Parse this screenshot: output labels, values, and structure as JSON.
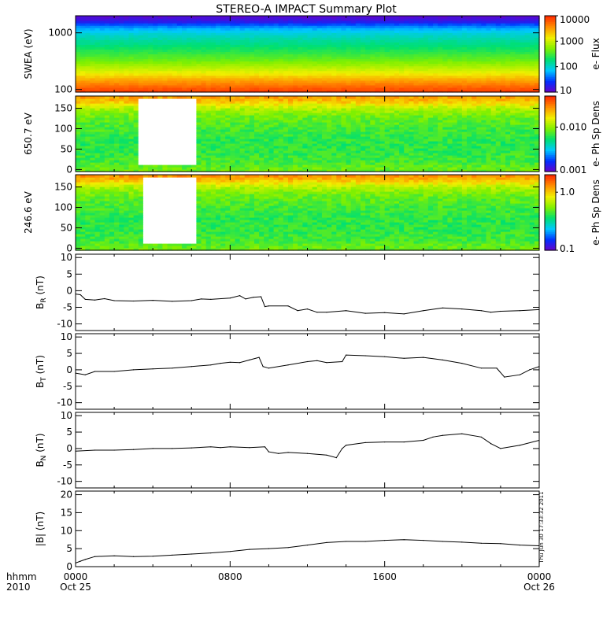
{
  "title": "STEREO-A IMPACT Summary Plot",
  "time_axis": {
    "label_line1": "hhmm",
    "label_line2": "2010",
    "ticks": [
      {
        "hhmm": "0000",
        "date": "Oct 25",
        "hours": 0
      },
      {
        "hhmm": "0800",
        "date": "",
        "hours": 8
      },
      {
        "hhmm": "1600",
        "date": "",
        "hours": 16
      },
      {
        "hhmm": "0000",
        "date": "Oct 26",
        "hours": 24
      }
    ],
    "range_hours": [
      0,
      24
    ]
  },
  "timestamp": "Thu Jun 30 17:33:32 2011",
  "colors": {
    "trace": "#000000",
    "gap": "#ffffff",
    "frame": "#000000"
  },
  "chart_data": [
    {
      "type": "heatmap",
      "ylabel": "SWEA (eV)",
      "yscale": "log",
      "ylim": [
        90,
        2000
      ],
      "yticks": [
        {
          "value": 100,
          "label": "100"
        },
        {
          "value": 1000,
          "label": "1000"
        }
      ],
      "colorbar": {
        "label": "e- Flux",
        "scale": "log",
        "range": [
          10,
          10000
        ],
        "ticks": [
          {
            "value": 10000,
            "label": "10000"
          },
          {
            "value": 1000,
            "label": "1000"
          },
          {
            "value": 100,
            "label": "100"
          },
          {
            "value": 10,
            "label": "10"
          }
        ],
        "colormap": [
          "#6a00c8",
          "#0030ff",
          "#00c8ff",
          "#00e070",
          "#80f000",
          "#f0f000",
          "#ff9000",
          "#ff2800"
        ]
      },
      "energy_profile": [
        {
          "energy": 90,
          "level": 0.98
        },
        {
          "energy": 110,
          "level": 0.92
        },
        {
          "energy": 150,
          "level": 0.82
        },
        {
          "energy": 190,
          "level": 0.72
        },
        {
          "energy": 230,
          "level": 0.66
        },
        {
          "energy": 260,
          "level": 0.62
        },
        {
          "energy": 330,
          "level": 0.55
        },
        {
          "energy": 450,
          "level": 0.48
        },
        {
          "energy": 600,
          "level": 0.42
        },
        {
          "energy": 800,
          "level": 0.37
        },
        {
          "energy": 1000,
          "level": 0.32
        },
        {
          "energy": 1200,
          "level": 0.26
        },
        {
          "energy": 1400,
          "level": 0.18
        },
        {
          "energy": 1600,
          "level": 0.08
        },
        {
          "energy": 2000,
          "level": 0.02
        }
      ]
    },
    {
      "type": "heatmap",
      "ylabel": "650.7 eV",
      "ylim": [
        -5,
        180
      ],
      "yticks": [
        {
          "value": 0,
          "label": "0"
        },
        {
          "value": 50,
          "label": "50"
        },
        {
          "value": 100,
          "label": "100"
        },
        {
          "value": 150,
          "label": "150"
        }
      ],
      "colorbar": {
        "label": "e- Ph Sp Dens",
        "scale": "log",
        "range": [
          0.001,
          0.05
        ],
        "ticks": [
          {
            "value": 0.01,
            "label": "0.010"
          },
          {
            "value": 0.001,
            "label": "0.001"
          }
        ],
        "colormap": [
          "#6a00c8",
          "#0030ff",
          "#00c8ff",
          "#00e070",
          "#80f000",
          "#f0f000",
          "#ff9000",
          "#ff2800"
        ]
      },
      "pitch_profile": [
        {
          "pitch": 180,
          "level": 0.84
        },
        {
          "pitch": 170,
          "level": 0.8
        },
        {
          "pitch": 160,
          "level": 0.72
        },
        {
          "pitch": 150,
          "level": 0.63
        },
        {
          "pitch": 130,
          "level": 0.55
        },
        {
          "pitch": 100,
          "level": 0.5
        },
        {
          "pitch": 60,
          "level": 0.47
        },
        {
          "pitch": 20,
          "level": 0.5
        },
        {
          "pitch": 0,
          "level": 0.55
        }
      ],
      "data_gaps": [
        {
          "start_hours": 3.3,
          "end_hours": 6.2,
          "pitch_min": 15,
          "pitch_max": 175
        }
      ]
    },
    {
      "type": "heatmap",
      "ylabel": "246.6 eV",
      "ylim": [
        -5,
        180
      ],
      "yticks": [
        {
          "value": 0,
          "label": "0"
        },
        {
          "value": 50,
          "label": "50"
        },
        {
          "value": 100,
          "label": "100"
        },
        {
          "value": 150,
          "label": "150"
        }
      ],
      "colorbar": {
        "label": "e- Ph Sp Dens",
        "scale": "log",
        "range": [
          0.1,
          2.0
        ],
        "ticks": [
          {
            "value": 1.0,
            "label": "1.0"
          },
          {
            "value": 0.1,
            "label": "0.1"
          }
        ],
        "colormap": [
          "#6a00c8",
          "#0030ff",
          "#00c8ff",
          "#00e070",
          "#80f000",
          "#f0f000",
          "#ff9000",
          "#ff2800"
        ]
      },
      "pitch_profile": [
        {
          "pitch": 180,
          "level": 0.86
        },
        {
          "pitch": 170,
          "level": 0.81
        },
        {
          "pitch": 160,
          "level": 0.72
        },
        {
          "pitch": 150,
          "level": 0.63
        },
        {
          "pitch": 130,
          "level": 0.55
        },
        {
          "pitch": 100,
          "level": 0.5
        },
        {
          "pitch": 60,
          "level": 0.47
        },
        {
          "pitch": 20,
          "level": 0.5
        },
        {
          "pitch": 0,
          "level": 0.55
        }
      ],
      "data_gaps": [
        {
          "start_hours": 3.5,
          "end_hours": 6.2,
          "pitch_min": 15,
          "pitch_max": 175
        }
      ]
    },
    {
      "type": "line",
      "ylabel_base": "B",
      "ylabel_sub": "R",
      "ylabel_unit": " (nT)",
      "ylim": [
        -12,
        11
      ],
      "yticks": [
        {
          "value": 10,
          "label": "10"
        },
        {
          "value": 5,
          "label": "5"
        },
        {
          "value": 0,
          "label": "0"
        },
        {
          "value": -5,
          "label": "-5"
        },
        {
          "value": -10,
          "label": "-10"
        }
      ],
      "x": [
        0,
        0.25,
        0.5,
        1.0,
        1.5,
        2.0,
        3.0,
        4.0,
        5.0,
        6.0,
        6.5,
        7.0,
        8.0,
        8.5,
        8.8,
        9.2,
        9.6,
        9.8,
        10.0,
        11.0,
        11.5,
        12.0,
        12.5,
        13.0,
        14.0,
        15.0,
        16.0,
        17.0,
        18.0,
        19.0,
        20.0,
        21.0,
        21.5,
        22.0,
        23.0,
        24.0
      ],
      "y": [
        -1.0,
        -1.2,
        -2.6,
        -2.8,
        -2.4,
        -3.0,
        -3.1,
        -2.9,
        -3.2,
        -3.0,
        -2.5,
        -2.6,
        -2.2,
        -1.5,
        -2.5,
        -2.0,
        -1.8,
        -4.8,
        -4.6,
        -4.6,
        -6.0,
        -5.5,
        -6.5,
        -6.5,
        -6.0,
        -6.8,
        -6.6,
        -7.0,
        -6.0,
        -5.2,
        -5.5,
        -6.0,
        -6.5,
        -6.2,
        -6.0,
        -5.7
      ]
    },
    {
      "type": "line",
      "ylabel_base": "B",
      "ylabel_sub": "T",
      "ylabel_unit": " (nT)",
      "ylim": [
        -12,
        11
      ],
      "yticks": [
        {
          "value": 10,
          "label": "10"
        },
        {
          "value": 5,
          "label": "5"
        },
        {
          "value": 0,
          "label": "0"
        },
        {
          "value": -5,
          "label": "-5"
        },
        {
          "value": -10,
          "label": "-10"
        }
      ],
      "x": [
        0,
        0.5,
        1.0,
        2.0,
        3.0,
        4.0,
        5.0,
        6.0,
        7.0,
        7.5,
        8.0,
        8.5,
        9.0,
        9.5,
        9.7,
        10.0,
        11.0,
        12.0,
        12.5,
        13.0,
        13.8,
        14.0,
        15.0,
        16.0,
        17.0,
        18.0,
        19.0,
        20.0,
        21.0,
        21.8,
        22.2,
        23.0,
        23.5,
        24.0
      ],
      "y": [
        -1.0,
        -1.5,
        -0.5,
        -0.5,
        0.0,
        0.3,
        0.5,
        1.0,
        1.5,
        2.0,
        2.3,
        2.2,
        3.0,
        3.8,
        1.0,
        0.5,
        1.5,
        2.5,
        2.8,
        2.2,
        2.5,
        4.5,
        4.3,
        4.0,
        3.5,
        3.8,
        3.0,
        2.0,
        0.5,
        0.5,
        -2.2,
        -1.5,
        0.0,
        1.0
      ]
    },
    {
      "type": "line",
      "ylabel_base": "B",
      "ylabel_sub": "N",
      "ylabel_unit": " (nT)",
      "ylim": [
        -12,
        11
      ],
      "yticks": [
        {
          "value": 10,
          "label": "10"
        },
        {
          "value": 5,
          "label": "5"
        },
        {
          "value": 0,
          "label": "0"
        },
        {
          "value": -5,
          "label": "-5"
        },
        {
          "value": -10,
          "label": "-10"
        }
      ],
      "x": [
        0,
        1.0,
        2.0,
        3.0,
        4.0,
        5.0,
        6.0,
        7.0,
        7.5,
        8.0,
        9.0,
        9.8,
        10.0,
        10.5,
        11.0,
        12.0,
        13.0,
        13.5,
        13.8,
        14.0,
        15.0,
        16.0,
        17.0,
        18.0,
        18.5,
        19.0,
        20.0,
        21.0,
        21.5,
        22.0,
        23.0,
        24.0
      ],
      "y": [
        -0.8,
        -0.5,
        -0.5,
        -0.3,
        0.0,
        0.0,
        0.2,
        0.5,
        0.3,
        0.5,
        0.3,
        0.5,
        -1.0,
        -1.5,
        -1.2,
        -1.5,
        -2.0,
        -2.8,
        0.0,
        1.0,
        1.8,
        2.0,
        2.0,
        2.5,
        3.5,
        4.0,
        4.5,
        3.5,
        1.5,
        0.0,
        1.0,
        2.5
      ]
    },
    {
      "type": "line",
      "ylabel_base": "|B|",
      "ylabel_sub": "",
      "ylabel_unit": " (nT)",
      "ylim": [
        0,
        21
      ],
      "yticks": [
        {
          "value": 20,
          "label": "20"
        },
        {
          "value": 15,
          "label": "15"
        },
        {
          "value": 10,
          "label": "10"
        },
        {
          "value": 5,
          "label": "5"
        },
        {
          "value": 0,
          "label": "0"
        }
      ],
      "x": [
        0,
        0.25,
        0.5,
        1.0,
        2.0,
        3.0,
        4.0,
        5.0,
        6.0,
        7.0,
        8.0,
        9.0,
        10.0,
        11.0,
        12.0,
        13.0,
        14.0,
        15.0,
        16.0,
        17.0,
        18.0,
        19.0,
        20.0,
        21.0,
        22.0,
        23.0,
        24.0
      ],
      "y": [
        1.0,
        1.5,
        2.0,
        2.8,
        3.0,
        2.8,
        2.9,
        3.2,
        3.5,
        3.8,
        4.2,
        4.8,
        5.0,
        5.3,
        6.0,
        6.7,
        7.0,
        7.0,
        7.3,
        7.5,
        7.3,
        7.0,
        6.8,
        6.5,
        6.4,
        6.0,
        5.8
      ]
    }
  ]
}
